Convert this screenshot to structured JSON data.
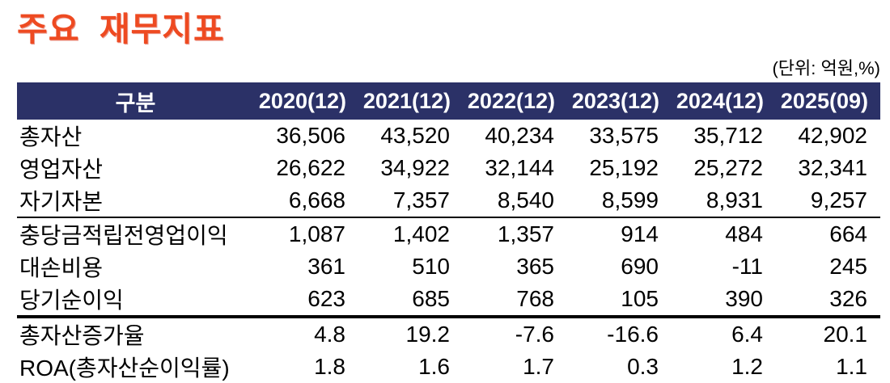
{
  "page": {
    "title": "주요 재무지표",
    "unit_label": "(단위: 억원,%)"
  },
  "colors": {
    "title_accent": "#ee4a21",
    "header_bg": "#2b3167",
    "header_text": "#ffffff"
  },
  "table": {
    "header": {
      "label": "구분",
      "columns": [
        "2020(12)",
        "2021(12)",
        "2022(12)",
        "2023(12)",
        "2024(12)",
        "2025(09)"
      ]
    },
    "rows": [
      {
        "label": "총자산",
        "values": [
          "36,506",
          "43,520",
          "40,234",
          "33,575",
          "35,712",
          "42,902"
        ]
      },
      {
        "label": "영업자산",
        "values": [
          "26,622",
          "34,922",
          "32,144",
          "25,192",
          "25,272",
          "32,341"
        ]
      },
      {
        "label": "자기자본",
        "values": [
          "6,668",
          "7,357",
          "8,540",
          "8,599",
          "8,931",
          "9,257"
        ]
      },
      {
        "label": "충당금적립전영업이익",
        "values": [
          "1,087",
          "1,402",
          "1,357",
          "914",
          "484",
          "664"
        ]
      },
      {
        "label": "대손비용",
        "values": [
          "361",
          "510",
          "365",
          "690",
          "-11",
          "245"
        ]
      },
      {
        "label": "당기순이익",
        "values": [
          "623",
          "685",
          "768",
          "105",
          "390",
          "326"
        ]
      },
      {
        "label": "총자산증가율",
        "values": [
          "4.8",
          "19.2",
          "-7.6",
          "-16.6",
          "6.4",
          "20.1"
        ]
      },
      {
        "label": "ROA(총자산순이익률)",
        "values": [
          "1.8",
          "1.6",
          "1.7",
          "0.3",
          "1.2",
          "1.1"
        ]
      }
    ]
  }
}
